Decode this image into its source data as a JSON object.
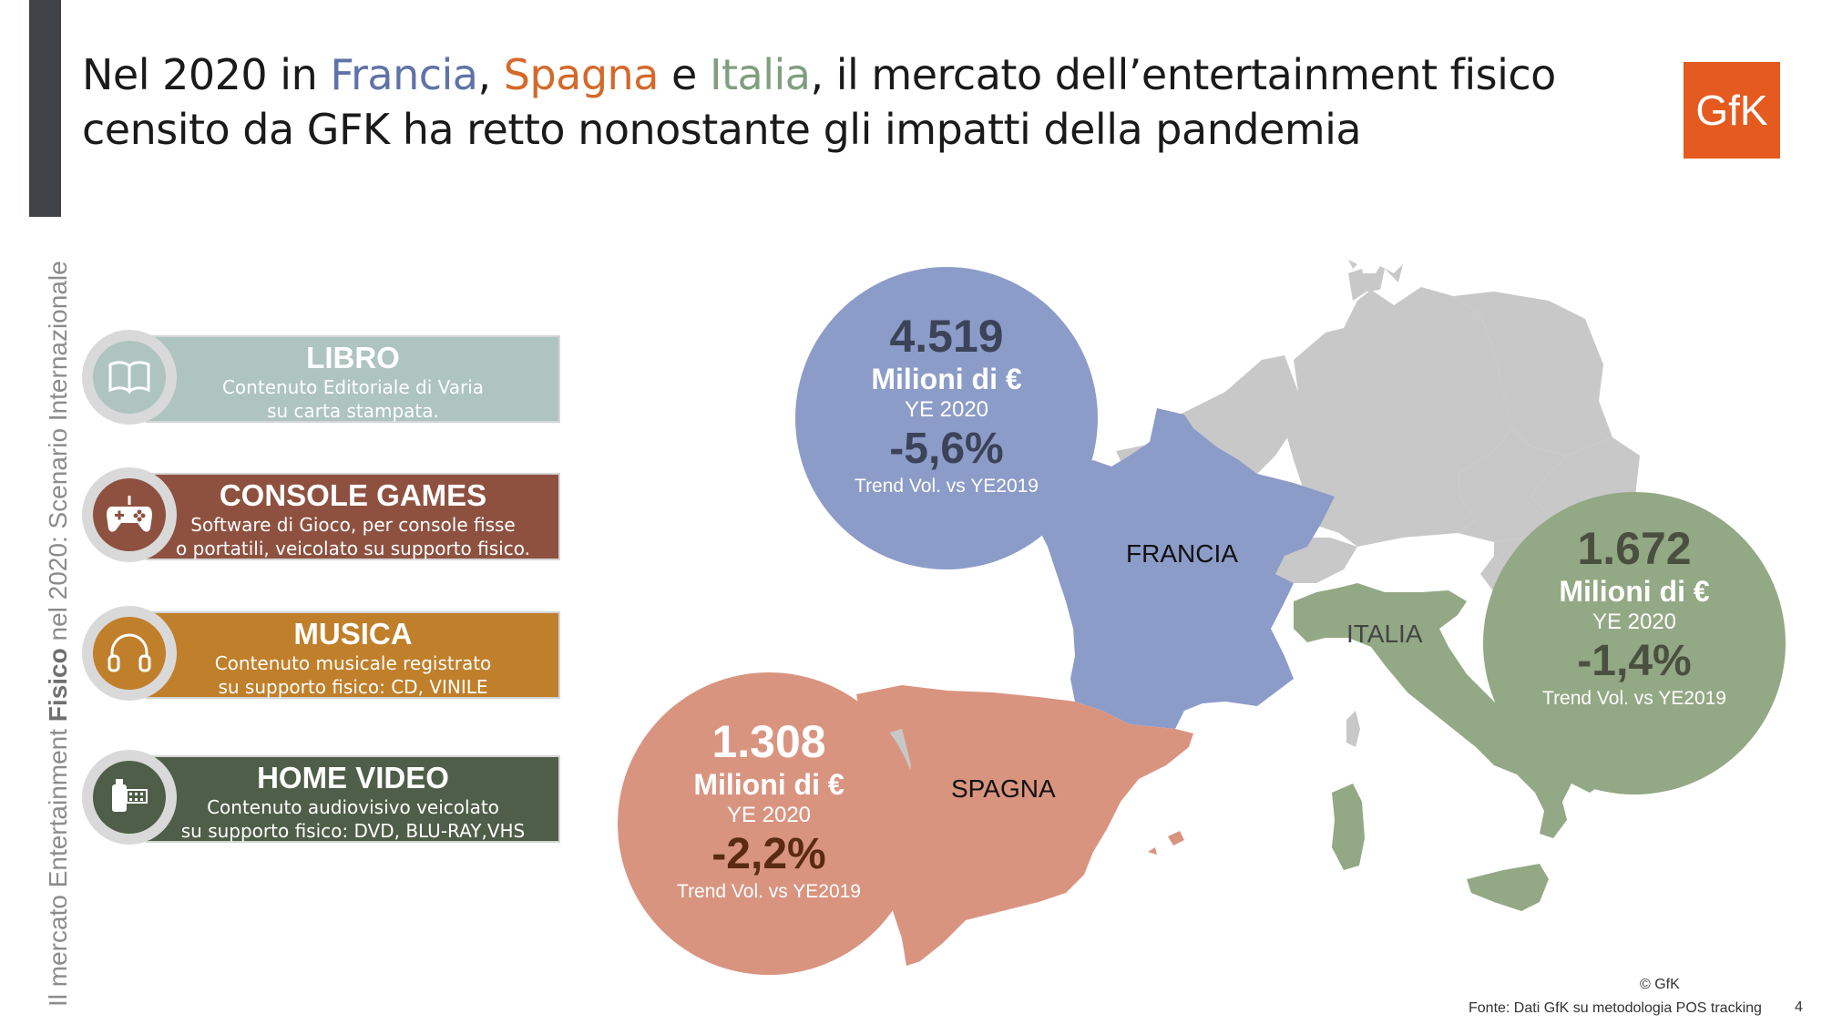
{
  "sidebar": {
    "part1": "Il mercato Entertainment ",
    "part2": "Fisico",
    "part3": " nel 2020: Scenario Internazionale"
  },
  "title": {
    "t1": "Nel 2020 in ",
    "francia": "Francia",
    "t2": ", ",
    "spagna": "Spagna",
    "t3": " e ",
    "italia": "Italia",
    "t4": ", il mercato dell’entertainment fisico censito da GFK ha retto nonostante gli impatti della pandemia"
  },
  "logo": {
    "text": "GfK",
    "color": "#e55a1e"
  },
  "colors": {
    "francia": "#5f73a8",
    "spagna": "#d4692a",
    "italia": "#7f9f7f",
    "map_grey": "#c8c8c8"
  },
  "categories": [
    {
      "title": "LIBRO",
      "line1": "Contenuto Editoriale di Varia",
      "line2": "su carta stampata.",
      "color": "#aec4bf",
      "icon": "book-icon"
    },
    {
      "title": "CONSOLE GAMES",
      "line1": "Software di Gioco, per console fisse",
      "line2": "o portatili, veicolato su supporto fisico.",
      "color": "#8e5140",
      "icon": "gamepad-icon"
    },
    {
      "title": "MUSICA",
      "line1": "Contenuto musicale registrato",
      "line2": "su supporto fisico: CD, VINILE",
      "color": "#c07f2a",
      "icon": "headphones-icon"
    },
    {
      "title": "HOME VIDEO",
      "line1": "Contenuto audiovisivo veicolato",
      "line2": "su supporto fisico: DVD, BLU-RAY,VHS",
      "color": "#4f5e48",
      "icon": "film-icon"
    }
  ],
  "map_labels": {
    "francia": "FRANCIA",
    "spagna": "SPAGNA",
    "italia": "ITALIA"
  },
  "bubbles": {
    "francia": {
      "value": "4.519",
      "unit": "Milioni di €",
      "ye": "YE 2020",
      "trend": "-5,6%",
      "trend_label": "Trend Vol. vs YE2019",
      "color": "#8c9cc8",
      "value_color": "#3a4358"
    },
    "spagna": {
      "value": "1.308",
      "unit": "Milioni di €",
      "ye": "YE 2020",
      "trend": "-2,2%",
      "trend_label": "Trend Vol. vs YE2019",
      "color": "#d99480",
      "value_color": "#5a2a12"
    },
    "italia": {
      "value": "1.672",
      "unit": "Milioni di €",
      "ye": "YE 2020",
      "trend": "-1,4%",
      "trend_label": "Trend Vol. vs YE2019",
      "color": "#93a884",
      "value_color": "#4a5040"
    }
  },
  "footer": {
    "copyright": "© GfK",
    "source": "Fonte: Dati GfK su metodologia POS tracking",
    "page": "4"
  }
}
